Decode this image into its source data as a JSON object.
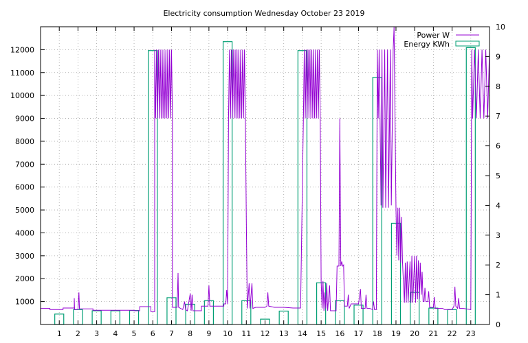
{
  "chart_data": {
    "type": "mixed",
    "title": "Electricity consumption Wednesday October 23 2019",
    "grid": true,
    "legend_position": "top-right",
    "x": {
      "min": 0,
      "max": 24,
      "ticks": [
        1,
        2,
        3,
        4,
        5,
        6,
        7,
        8,
        9,
        10,
        11,
        12,
        13,
        14,
        15,
        16,
        17,
        18,
        19,
        20,
        21,
        22,
        23
      ],
      "labels": [
        "1",
        "2",
        "3",
        "4",
        "5",
        "6",
        "7",
        "8",
        "9",
        "10",
        "11",
        "12",
        "13",
        "14",
        "15",
        "16",
        "17",
        "18",
        "19",
        "20",
        "21",
        "22",
        "23"
      ]
    },
    "y_left": {
      "min": 0,
      "max": 13000,
      "ticks": [
        1000,
        2000,
        3000,
        4000,
        5000,
        6000,
        7000,
        8000,
        9000,
        10000,
        11000,
        12000
      ],
      "labels": [
        "1000",
        "2000",
        "3000",
        "4000",
        "5000",
        "6000",
        "7000",
        "8000",
        "9000",
        "10000",
        "11000",
        "12000"
      ]
    },
    "y_right": {
      "min": 0,
      "max": 10,
      "ticks": [
        0,
        1,
        2,
        3,
        4,
        5,
        6,
        7,
        8,
        9,
        10
      ],
      "labels": [
        "0",
        "1",
        "2",
        "3",
        "4",
        "5",
        "6",
        "7",
        "8",
        "9",
        "10"
      ]
    },
    "series": [
      {
        "name": "Power W",
        "type": "line",
        "axis": "left",
        "color": "#9400d3",
        "points": [
          [
            0.0,
            700
          ],
          [
            0.5,
            700
          ],
          [
            0.5,
            650
          ],
          [
            1.2,
            650
          ],
          [
            1.2,
            720
          ],
          [
            1.8,
            720
          ],
          [
            1.8,
            1150
          ],
          [
            1.82,
            650
          ],
          [
            1.9,
            650
          ],
          [
            2.0,
            650
          ],
          [
            2.05,
            1400
          ],
          [
            2.08,
            680
          ],
          [
            2.8,
            680
          ],
          [
            2.8,
            620
          ],
          [
            5.0,
            620
          ],
          [
            5.0,
            600
          ],
          [
            5.3,
            600
          ],
          [
            5.3,
            780
          ],
          [
            5.9,
            780
          ],
          [
            5.9,
            560
          ],
          [
            6.1,
            560
          ],
          [
            6.1,
            9000
          ],
          [
            6.1,
            12000
          ],
          [
            6.15,
            9000
          ],
          [
            6.2,
            12000
          ],
          [
            6.25,
            9000
          ],
          [
            6.3,
            12000
          ],
          [
            6.35,
            9000
          ],
          [
            6.4,
            12000
          ],
          [
            6.45,
            9000
          ],
          [
            6.5,
            12000
          ],
          [
            6.55,
            9000
          ],
          [
            6.6,
            12000
          ],
          [
            6.65,
            9000
          ],
          [
            6.7,
            12000
          ],
          [
            6.75,
            9000
          ],
          [
            6.8,
            12000
          ],
          [
            6.85,
            9000
          ],
          [
            6.9,
            12000
          ],
          [
            6.95,
            9000
          ],
          [
            7.0,
            12000
          ],
          [
            7.05,
            9000
          ],
          [
            7.05,
            750
          ],
          [
            7.3,
            750
          ],
          [
            7.35,
            2250
          ],
          [
            7.38,
            750
          ],
          [
            7.6,
            650
          ],
          [
            7.7,
            1000
          ],
          [
            7.75,
            650
          ],
          [
            7.85,
            600
          ],
          [
            8.0,
            1350
          ],
          [
            8.05,
            600
          ],
          [
            8.1,
            1300
          ],
          [
            8.15,
            600
          ],
          [
            8.6,
            600
          ],
          [
            8.6,
            800
          ],
          [
            8.95,
            800
          ],
          [
            9.0,
            1700
          ],
          [
            9.05,
            800
          ],
          [
            9.8,
            800
          ],
          [
            9.8,
            900
          ],
          [
            9.9,
            900
          ],
          [
            9.95,
            1500
          ],
          [
            10.0,
            900
          ],
          [
            10.05,
            9000
          ],
          [
            10.1,
            12000
          ],
          [
            10.15,
            9000
          ],
          [
            10.2,
            12000
          ],
          [
            10.25,
            9000
          ],
          [
            10.3,
            12000
          ],
          [
            10.35,
            9000
          ],
          [
            10.4,
            12000
          ],
          [
            10.45,
            9000
          ],
          [
            10.5,
            12000
          ],
          [
            10.55,
            9000
          ],
          [
            10.6,
            12000
          ],
          [
            10.65,
            9000
          ],
          [
            10.7,
            12000
          ],
          [
            10.75,
            9000
          ],
          [
            10.8,
            12000
          ],
          [
            10.85,
            9000
          ],
          [
            10.9,
            12000
          ],
          [
            10.95,
            9000
          ],
          [
            11.0,
            4500
          ],
          [
            11.05,
            700
          ],
          [
            11.15,
            1800
          ],
          [
            11.2,
            700
          ],
          [
            11.3,
            1800
          ],
          [
            11.35,
            700
          ],
          [
            11.5,
            750
          ],
          [
            12.0,
            750
          ],
          [
            12.1,
            800
          ],
          [
            12.15,
            1400
          ],
          [
            12.2,
            800
          ],
          [
            12.5,
            750
          ],
          [
            13.0,
            750
          ],
          [
            13.5,
            720
          ],
          [
            13.9,
            720
          ],
          [
            14.05,
            9000
          ],
          [
            14.1,
            12000
          ],
          [
            14.15,
            9000
          ],
          [
            14.2,
            12000
          ],
          [
            14.25,
            9000
          ],
          [
            14.3,
            12000
          ],
          [
            14.35,
            9000
          ],
          [
            14.4,
            12000
          ],
          [
            14.45,
            9000
          ],
          [
            14.5,
            12000
          ],
          [
            14.55,
            9000
          ],
          [
            14.6,
            12000
          ],
          [
            14.65,
            9000
          ],
          [
            14.7,
            12000
          ],
          [
            14.75,
            9000
          ],
          [
            14.8,
            12000
          ],
          [
            14.85,
            9000
          ],
          [
            14.9,
            12000
          ],
          [
            14.95,
            9000
          ],
          [
            15.0,
            1900
          ],
          [
            15.05,
            700
          ],
          [
            15.1,
            1900
          ],
          [
            15.15,
            600
          ],
          [
            15.2,
            1400
          ],
          [
            15.25,
            700
          ],
          [
            15.3,
            1800
          ],
          [
            15.35,
            600
          ],
          [
            15.45,
            1700
          ],
          [
            15.5,
            600
          ],
          [
            15.8,
            600
          ],
          [
            15.85,
            2550
          ],
          [
            15.95,
            2550
          ],
          [
            16.0,
            9000
          ],
          [
            16.05,
            2550
          ],
          [
            16.1,
            2750
          ],
          [
            16.15,
            2550
          ],
          [
            16.2,
            2600
          ],
          [
            16.25,
            800
          ],
          [
            16.4,
            800
          ],
          [
            16.45,
            1300
          ],
          [
            16.5,
            700
          ],
          [
            16.6,
            900
          ],
          [
            17.0,
            900
          ],
          [
            17.1,
            1550
          ],
          [
            17.15,
            700
          ],
          [
            17.35,
            700
          ],
          [
            17.4,
            1300
          ],
          [
            17.45,
            700
          ],
          [
            17.6,
            700
          ],
          [
            17.75,
            650
          ],
          [
            17.8,
            1000
          ],
          [
            17.85,
            650
          ],
          [
            17.95,
            650
          ],
          [
            18.0,
            12000
          ],
          [
            18.05,
            9000
          ],
          [
            18.1,
            12000
          ],
          [
            18.15,
            9000
          ],
          [
            18.2,
            5200
          ],
          [
            18.25,
            12000
          ],
          [
            18.3,
            5100
          ],
          [
            18.4,
            12000
          ],
          [
            18.45,
            5100
          ],
          [
            18.55,
            12000
          ],
          [
            18.6,
            5100
          ],
          [
            18.7,
            12000
          ],
          [
            18.75,
            5200
          ],
          [
            18.85,
            12000
          ],
          [
            18.9,
            13000
          ],
          [
            18.95,
            9000
          ],
          [
            19.0,
            5000
          ],
          [
            19.05,
            3000
          ],
          [
            19.1,
            5100
          ],
          [
            19.15,
            2800
          ],
          [
            19.2,
            5100
          ],
          [
            19.25,
            2700
          ],
          [
            19.3,
            4700
          ],
          [
            19.35,
            2700
          ],
          [
            19.45,
            950
          ],
          [
            19.5,
            2700
          ],
          [
            19.55,
            950
          ],
          [
            19.6,
            2750
          ],
          [
            19.65,
            950
          ],
          [
            19.75,
            2750
          ],
          [
            19.8,
            950
          ],
          [
            19.85,
            3000
          ],
          [
            19.9,
            950
          ],
          [
            20.0,
            3000
          ],
          [
            20.05,
            950
          ],
          [
            20.1,
            3000
          ],
          [
            20.15,
            1100
          ],
          [
            20.2,
            2800
          ],
          [
            20.25,
            1100
          ],
          [
            20.3,
            2700
          ],
          [
            20.35,
            1300
          ],
          [
            20.4,
            2300
          ],
          [
            20.45,
            1000
          ],
          [
            20.5,
            1000
          ],
          [
            20.55,
            1600
          ],
          [
            20.6,
            1000
          ],
          [
            20.7,
            1000
          ],
          [
            20.75,
            1450
          ],
          [
            20.8,
            750
          ],
          [
            21.0,
            750
          ],
          [
            21.05,
            1200
          ],
          [
            21.1,
            700
          ],
          [
            21.5,
            700
          ],
          [
            21.6,
            650
          ],
          [
            22.0,
            650
          ],
          [
            22.1,
            800
          ],
          [
            22.15,
            1650
          ],
          [
            22.2,
            800
          ],
          [
            22.3,
            700
          ],
          [
            22.35,
            1150
          ],
          [
            22.4,
            700
          ],
          [
            22.6,
            700
          ],
          [
            23.0,
            650
          ],
          [
            23.05,
            12000
          ],
          [
            23.1,
            9000
          ],
          [
            23.2,
            12000
          ],
          [
            23.3,
            9000
          ],
          [
            23.4,
            12000
          ],
          [
            23.5,
            9000
          ],
          [
            23.6,
            12000
          ],
          [
            23.7,
            9000
          ],
          [
            23.8,
            12000
          ],
          [
            23.9,
            9000
          ],
          [
            24.0,
            12000
          ]
        ]
      },
      {
        "name": "Energy KWh",
        "type": "step",
        "axis": "right",
        "color": "#009e73",
        "points": [
          [
            0,
            0
          ],
          [
            1,
            0.35
          ],
          [
            2,
            0.5
          ],
          [
            3,
            0.46
          ],
          [
            4,
            0.46
          ],
          [
            5,
            0.47
          ],
          [
            6,
            9.2
          ],
          [
            7,
            0.9
          ],
          [
            8,
            0.68
          ],
          [
            9,
            0.8
          ],
          [
            10,
            9.5
          ],
          [
            11,
            0.8
          ],
          [
            12,
            0.18
          ],
          [
            13,
            0.45
          ],
          [
            14,
            9.2
          ],
          [
            15,
            1.4
          ],
          [
            16,
            0.8
          ],
          [
            17,
            0.65
          ],
          [
            18,
            8.3
          ],
          [
            19,
            3.4
          ],
          [
            20,
            1.08
          ],
          [
            21,
            0.55
          ],
          [
            22,
            0.5
          ],
          [
            23,
            9.3
          ]
        ]
      }
    ]
  }
}
